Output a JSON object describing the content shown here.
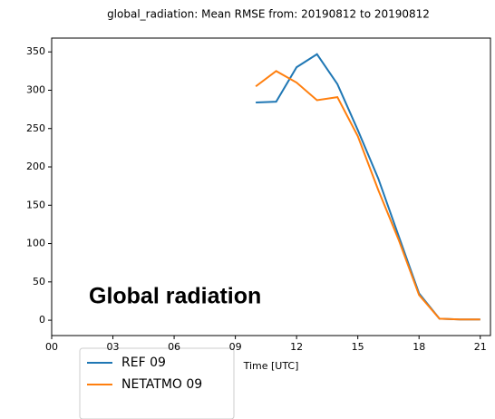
{
  "chart_data": {
    "type": "line",
    "title": "global_radiation: Mean RMSE from: 20190812 to 20190812",
    "x_label": "Time [UTC]",
    "annotation": "Global radiation",
    "x": [
      10,
      11,
      12,
      13,
      14,
      15,
      16,
      17,
      18,
      19,
      20,
      21
    ],
    "series": [
      {
        "name": "REF 09",
        "color": "#1f77b4",
        "values": [
          284,
          285,
          330,
          347,
          308,
          248,
          185,
          110,
          35,
          2,
          1,
          1
        ]
      },
      {
        "name": "NETATMO 09",
        "color": "#ff7f0e",
        "values": [
          305,
          325,
          310,
          287,
          291,
          240,
          170,
          105,
          33,
          2,
          1,
          1
        ]
      }
    ],
    "xlim": [
      0,
      21.5
    ],
    "xticks": [
      {
        "value": 0,
        "label": "00"
      },
      {
        "value": 3,
        "label": "03"
      },
      {
        "value": 6,
        "label": "06"
      },
      {
        "value": 9,
        "label": "09"
      },
      12,
      15,
      18,
      21
    ],
    "ylim": [
      -20,
      368
    ],
    "yticks": [
      0,
      50,
      100,
      150,
      200,
      250,
      300,
      350
    ],
    "legend": "below-left"
  }
}
